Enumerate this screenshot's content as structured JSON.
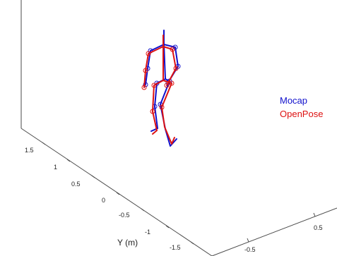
{
  "chart_data": {
    "type": "line",
    "projection": "3d",
    "ylabel": "Y (m)",
    "y_ticks": [
      "1.5",
      "1",
      "0.5",
      "0",
      "-0.5",
      "-1",
      "-1.5"
    ],
    "x_ticks": [
      "0.5",
      "-0.5"
    ],
    "grid": false,
    "legend_position": "right",
    "series": [
      {
        "name": "Mocap",
        "color": "#1010cc"
      },
      {
        "name": "OpenPose",
        "color": "#dd1111"
      }
    ],
    "skeleton": {
      "Mocap": {
        "head_top": [
          232,
          43
        ],
        "neck": [
          232,
          63
        ],
        "r_shoulder": [
          213,
          72
        ],
        "l_shoulder": [
          248,
          67
        ],
        "r_elbow": [
          209,
          97
        ],
        "l_elbow": [
          252,
          94
        ],
        "r_wrist": [
          206,
          120
        ],
        "l_wrist": [
          238,
          117
        ],
        "pelvis": [
          234,
          112
        ],
        "r_hip": [
          222,
          118
        ],
        "l_hip": [
          240,
          115
        ],
        "r_knee": [
          219,
          151
        ],
        "l_knee": [
          227,
          148
        ],
        "r_ankle": [
          223,
          182
        ],
        "l_ankle": [
          234,
          183
        ],
        "r_foot": [
          214,
          186
        ],
        "l_foot": [
          241,
          207
        ],
        "l_toe": [
          250,
          197
        ]
      },
      "OpenPose": {
        "head_top": [
          231,
          50
        ],
        "neck": [
          231,
          66
        ],
        "r_shoulder": [
          210,
          76
        ],
        "l_shoulder": [
          244,
          70
        ],
        "r_elbow": [
          206,
          100
        ],
        "l_elbow": [
          249,
          97
        ],
        "r_wrist": [
          204,
          124
        ],
        "l_wrist": [
          236,
          121
        ],
        "pelvis": [
          231,
          114
        ],
        "r_hip": [
          218,
          121
        ],
        "l_hip": [
          243,
          118
        ],
        "r_knee": [
          216,
          158
        ],
        "l_knee": [
          229,
          152
        ],
        "r_ankle": [
          222,
          185
        ],
        "l_ankle": [
          233,
          180
        ],
        "r_foot": [
          216,
          190
        ],
        "l_foot": [
          243,
          204
        ],
        "l_toe": [
          247,
          195
        ]
      }
    }
  }
}
